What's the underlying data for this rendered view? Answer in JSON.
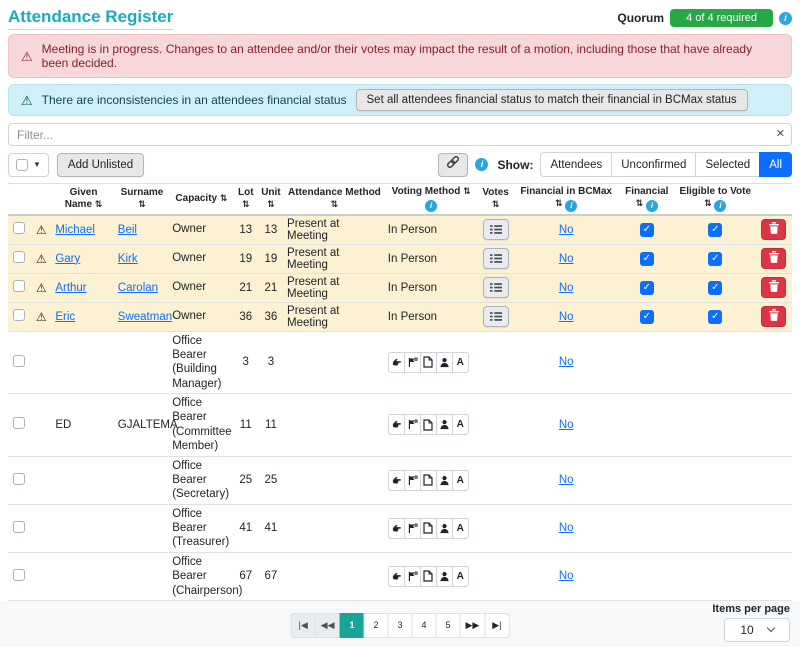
{
  "colors": {
    "title_teal": "#1aacbe",
    "quorum_green": "#28a745",
    "danger_bg": "#f8d7da",
    "danger_text": "#842029",
    "info_bg": "#cff0f8",
    "link_blue": "#0d6efd",
    "active_show_blue": "#0d6efd",
    "row_highlight_yellow": "#fdf1d3",
    "active_page_teal": "#18a598",
    "delete_red": "#dc3545",
    "info_icon_blue": "#2aa6dc"
  },
  "header": {
    "title": "Attendance Register",
    "quorum_label": "Quorum",
    "quorum_value": "4 of 4 required"
  },
  "alerts": {
    "danger_text": "Meeting is in progress. Changes to an attendee and/or their votes may impact the result of a motion, including those that have already been decided.",
    "info_text": "There are inconsistencies in an attendees financial status",
    "info_button": "Set all attendees financial status to match their financial in BCMax status"
  },
  "filter": {
    "placeholder": "Filter...",
    "clear_glyph": "✕"
  },
  "toolbar": {
    "add_unlisted": "Add Unlisted",
    "show_label": "Show:",
    "show_options": [
      "Attendees",
      "Unconfirmed",
      "Selected",
      "All"
    ],
    "active_option": "All"
  },
  "icons": {
    "warning": "warning-triangle",
    "info": "info-circle",
    "sort": "up-down-arrows",
    "sort_glyph": "⇅",
    "warning_glyph": "⚠",
    "info_glyph": "i",
    "link_button": "link-chain",
    "votes_button": "list-lines",
    "delete_button": "trash",
    "voting_option_icons": [
      "raised-hand",
      "proxy-flag",
      "voting-paper",
      "representative-person",
      "apology-letter-a"
    ],
    "apology_letter": "A"
  },
  "table": {
    "columns": [
      {
        "key": "check",
        "label": ""
      },
      {
        "key": "warn",
        "label": ""
      },
      {
        "key": "given",
        "label": "Given Name",
        "sort": true
      },
      {
        "key": "surname",
        "label": "Surname",
        "sort": true
      },
      {
        "key": "capacity",
        "label": "Capacity",
        "sort": true
      },
      {
        "key": "lot",
        "label": "Lot",
        "sort": true
      },
      {
        "key": "unit",
        "label": "Unit",
        "sort": true
      },
      {
        "key": "attendance",
        "label": "Attendance Method",
        "sort": true
      },
      {
        "key": "voting",
        "label": "Voting Method",
        "sort": true,
        "info": true
      },
      {
        "key": "votes",
        "label": "Votes",
        "sort": true
      },
      {
        "key": "finbcmax",
        "label": "Financial in BCMax",
        "sort": true,
        "info": true
      },
      {
        "key": "financial",
        "label": "Financial",
        "sort": true,
        "info": true
      },
      {
        "key": "eligible",
        "label": "Eligible to Vote",
        "sort": true,
        "info": true
      },
      {
        "key": "del",
        "label": ""
      }
    ],
    "rows": [
      {
        "highlight": true,
        "warning": true,
        "given": "Michael",
        "surname": "Beil",
        "links": true,
        "capacity": "Owner",
        "lot": "13",
        "unit": "13",
        "attendance_method": "Present at Meeting",
        "voting_method": "In Person",
        "votes_button": true,
        "voting_icons": false,
        "financial_in_bcmax": "No",
        "financial": true,
        "eligible": true,
        "deletable": true
      },
      {
        "highlight": true,
        "warning": true,
        "given": "Gary",
        "surname": "Kirk",
        "links": true,
        "capacity": "Owner",
        "lot": "19",
        "unit": "19",
        "attendance_method": "Present at Meeting",
        "voting_method": "In Person",
        "votes_button": true,
        "voting_icons": false,
        "financial_in_bcmax": "No",
        "financial": true,
        "eligible": true,
        "deletable": true
      },
      {
        "highlight": true,
        "warning": true,
        "given": "Arthur",
        "surname": "Carolan",
        "links": true,
        "capacity": "Owner",
        "lot": "21",
        "unit": "21",
        "attendance_method": "Present at Meeting",
        "voting_method": "In Person",
        "votes_button": true,
        "voting_icons": false,
        "financial_in_bcmax": "No",
        "financial": true,
        "eligible": true,
        "deletable": true
      },
      {
        "highlight": true,
        "warning": true,
        "given": "Eric",
        "surname": "Sweatman",
        "links": true,
        "capacity": "Owner",
        "lot": "36",
        "unit": "36",
        "attendance_method": "Present at Meeting",
        "voting_method": "In Person",
        "votes_button": true,
        "voting_icons": false,
        "financial_in_bcmax": "No",
        "financial": true,
        "eligible": true,
        "deletable": true
      },
      {
        "highlight": false,
        "warning": false,
        "given": "",
        "surname": "",
        "links": false,
        "capacity": "Office Bearer (Building Manager)",
        "lot": "3",
        "unit": "3",
        "attendance_method": "",
        "voting_method": "",
        "votes_button": false,
        "voting_icons": true,
        "financial_in_bcmax": "No",
        "financial": null,
        "eligible": null,
        "deletable": false,
        "lines": 3
      },
      {
        "highlight": false,
        "warning": false,
        "given": "ED",
        "surname": "GJALTEMA",
        "links": false,
        "capacity": "Office Bearer (Committee Member)",
        "lot": "11",
        "unit": "11",
        "attendance_method": "",
        "voting_method": "",
        "votes_button": false,
        "voting_icons": true,
        "financial_in_bcmax": "No",
        "financial": null,
        "eligible": null,
        "deletable": false,
        "lines": 3
      },
      {
        "highlight": false,
        "warning": false,
        "given": "",
        "surname": "",
        "links": false,
        "capacity": "Office Bearer (Secretary)",
        "lot": "25",
        "unit": "25",
        "attendance_method": "",
        "voting_method": "",
        "votes_button": false,
        "voting_icons": true,
        "financial_in_bcmax": "No",
        "financial": null,
        "eligible": null,
        "deletable": false,
        "lines": 2
      },
      {
        "highlight": false,
        "warning": false,
        "given": "",
        "surname": "",
        "links": false,
        "capacity": "Office Bearer (Treasurer)",
        "lot": "41",
        "unit": "41",
        "attendance_method": "",
        "voting_method": "",
        "votes_button": false,
        "voting_icons": true,
        "financial_in_bcmax": "No",
        "financial": null,
        "eligible": null,
        "deletable": false,
        "lines": 2
      },
      {
        "highlight": false,
        "warning": false,
        "given": "",
        "surname": "",
        "links": false,
        "capacity": "Office Bearer (Chairperson)",
        "lot": "67",
        "unit": "67",
        "attendance_method": "",
        "voting_method": "",
        "votes_button": false,
        "voting_icons": true,
        "financial_in_bcmax": "No",
        "financial": null,
        "eligible": null,
        "deletable": false,
        "lines": 2
      }
    ]
  },
  "pagination": {
    "first": "|◀",
    "prev": "◀◀",
    "pages": [
      "1",
      "2",
      "3",
      "4",
      "5"
    ],
    "active_page": "1",
    "next": "▶▶",
    "last": "▶|"
  },
  "items_per_page": {
    "label": "Items per page",
    "value": "10"
  }
}
